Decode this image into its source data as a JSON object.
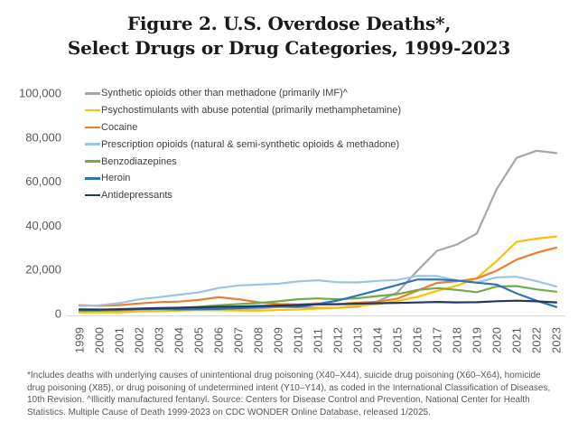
{
  "title": {
    "line1": "Figure 2. U.S. Overdose Deaths*,",
    "line2": "Select Drugs or Drug Categories, 1999-2023"
  },
  "chart_data": {
    "type": "line",
    "title": "Figure 2. U.S. Overdose Deaths*, Select Drugs or Drug Categories, 1999-2023",
    "xlabel": "",
    "ylabel": "",
    "x": [
      1999,
      2000,
      2001,
      2002,
      2003,
      2004,
      2005,
      2006,
      2007,
      2008,
      2009,
      2010,
      2011,
      2012,
      2013,
      2014,
      2015,
      2016,
      2017,
      2018,
      2019,
      2020,
      2021,
      2022,
      2023
    ],
    "ylim": [
      0,
      100000
    ],
    "yticks": [
      0,
      20000,
      40000,
      60000,
      80000,
      100000
    ],
    "grid": false,
    "legend_position": "top-left-inside",
    "axis_color": "#595959",
    "axis_line_color": "#d9d9d9",
    "series": [
      {
        "id": "synthetic-opioids",
        "name": "Synthetic opioids other than methadone (primarily IMF)^",
        "color": "#a6a6a6",
        "values": [
          730,
          782,
          957,
          1295,
          1400,
          1664,
          1742,
          2707,
          2213,
          2306,
          3007,
          3007,
          2666,
          2628,
          3105,
          5544,
          9580,
          19413,
          28466,
          31335,
          36359,
          56516,
          70601,
          73838,
          72776
        ]
      },
      {
        "id": "psychostimulants",
        "name": "Psychostimulants with abuse potential (primarily methamphetamine)",
        "color": "#ffc000",
        "values": [
          547,
          578,
          563,
          941,
          1056,
          1305,
          1608,
          1462,
          1378,
          1302,
          1632,
          1854,
          2266,
          2635,
          3627,
          4298,
          5716,
          7542,
          10333,
          12676,
          16167,
          23837,
          32537,
          34022,
          35000
        ]
      },
      {
        "id": "cocaine",
        "name": "Cocaine",
        "color": "#ed7d31",
        "values": [
          3822,
          3544,
          3833,
          4599,
          5199,
          5443,
          6208,
          7448,
          6512,
          5129,
          4350,
          4183,
          4681,
          4404,
          4944,
          5415,
          6784,
          10375,
          13942,
          14666,
          15883,
          19447,
          24486,
          27569,
          29918
        ]
      },
      {
        "id": "prescription-opioids",
        "name": "Prescription opioids (natural & semi-synthetic opioids & methadone)",
        "color": "#9dc3e6",
        "values": [
          3442,
          3785,
          4770,
          6483,
          7461,
          8577,
          9612,
          11589,
          12796,
          13149,
          13523,
          14583,
          15140,
          14240,
          14145,
          14838,
          15281,
          17087,
          17029,
          14975,
          14139,
          16416,
          16706,
          14716,
          12342
        ]
      },
      {
        "id": "benzodiazepines",
        "name": "Benzodiazepines",
        "color": "#70ad47",
        "values": [
          1135,
          1298,
          1594,
          2022,
          2248,
          2627,
          3084,
          3805,
          4300,
          4777,
          5567,
          6497,
          6872,
          6524,
          6973,
          7945,
          8791,
          10684,
          11537,
          10724,
          9711,
          12290,
          12499,
          10964,
          9900
        ]
      },
      {
        "id": "heroin",
        "name": "Heroin",
        "color": "#2e75b6",
        "values": [
          1960,
          1842,
          1779,
          2089,
          2080,
          1878,
          2009,
          2088,
          2399,
          3041,
          3278,
          3036,
          4397,
          5925,
          8257,
          10574,
          12989,
          15469,
          15482,
          14996,
          14019,
          13165,
          9173,
          5871,
          3000
        ]
      },
      {
        "id": "antidepressants",
        "name": "Antidepressants",
        "color": "#203864",
        "values": [
          1749,
          1798,
          1997,
          2243,
          2512,
          2662,
          2861,
          3087,
          3194,
          3447,
          3643,
          3889,
          4164,
          4205,
          4520,
          4727,
          4846,
          5049,
          5269,
          5064,
          5175,
          5597,
          5859,
          5556,
          5100
        ]
      }
    ]
  },
  "footnote": "*Includes deaths with underlying causes of unintentional drug poisoning (X40–X44), suicide drug poisoning (X60–X64), homicide drug poisoning (X85), or drug poisoning of undetermined intent (Y10–Y14), as coded in the International Classification of Diseases, 10th Revision. ^Illicitly manufactured fentanyl. Source: Centers for Disease Control and Prevention, National Center for Health Statistics. Multiple Cause of Death 1999-2023 on CDC WONDER Online Database, released 1/2025."
}
